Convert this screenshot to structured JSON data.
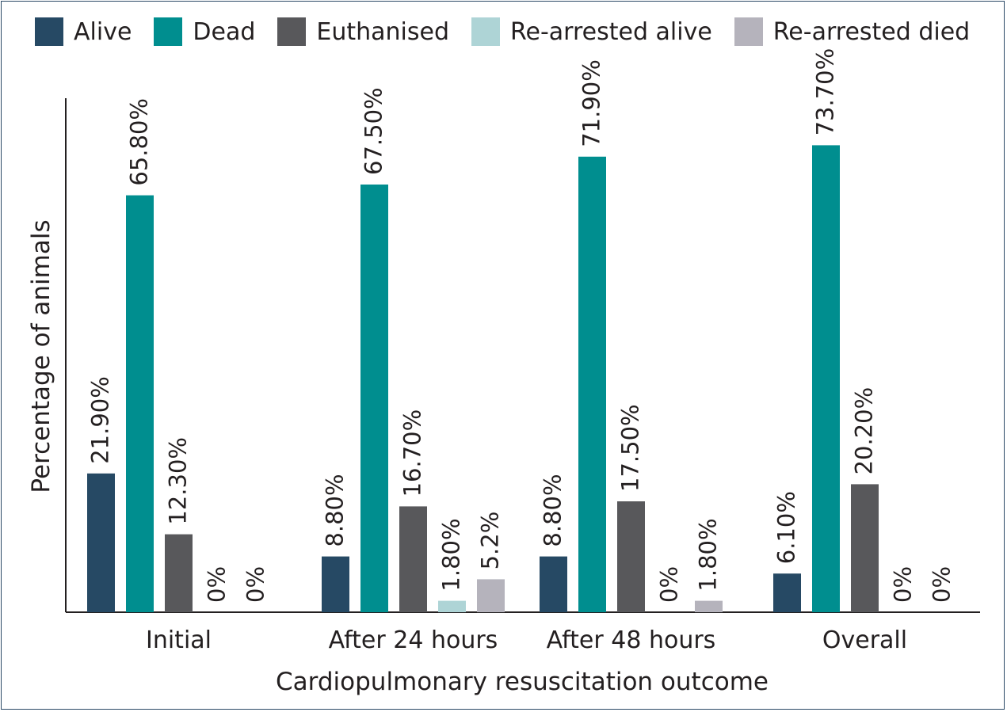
{
  "chart_data": {
    "type": "bar",
    "title": "",
    "xlabel": "Cardiopulmonary resuscitation outcome",
    "ylabel": "Percentage of animals",
    "ylim": [
      0,
      80
    ],
    "grid": false,
    "legend_position": "top",
    "categories": [
      "Initial",
      "After 24 hours",
      "After 48 hours",
      "Overall"
    ],
    "series": [
      {
        "name": "Alive",
        "color": "#264964",
        "values": [
          21.9,
          8.8,
          8.8,
          6.1
        ],
        "labels": [
          "21.90%",
          "8.80%",
          "8.80%",
          "6.10%"
        ]
      },
      {
        "name": "Dead",
        "color": "#008e8f",
        "values": [
          65.8,
          67.5,
          71.9,
          73.7
        ],
        "labels": [
          "65.80%",
          "67.50%",
          "71.90%",
          "73.70%"
        ]
      },
      {
        "name": "Euthanised",
        "color": "#58585b",
        "values": [
          12.3,
          16.7,
          17.5,
          20.2
        ],
        "labels": [
          "12.30%",
          "16.70%",
          "17.50%",
          "20.20%"
        ]
      },
      {
        "name": "Re-arrested alive",
        "color": "#aed4d6",
        "values": [
          0,
          1.8,
          0,
          0
        ],
        "labels": [
          "0%",
          "1.80%",
          "0%",
          "0%"
        ]
      },
      {
        "name": "Re-arrested died",
        "color": "#b5b3bc",
        "values": [
          0,
          5.2,
          1.8,
          0
        ],
        "labels": [
          "0%",
          "5.2%",
          "1.80%",
          "0%"
        ]
      }
    ]
  }
}
